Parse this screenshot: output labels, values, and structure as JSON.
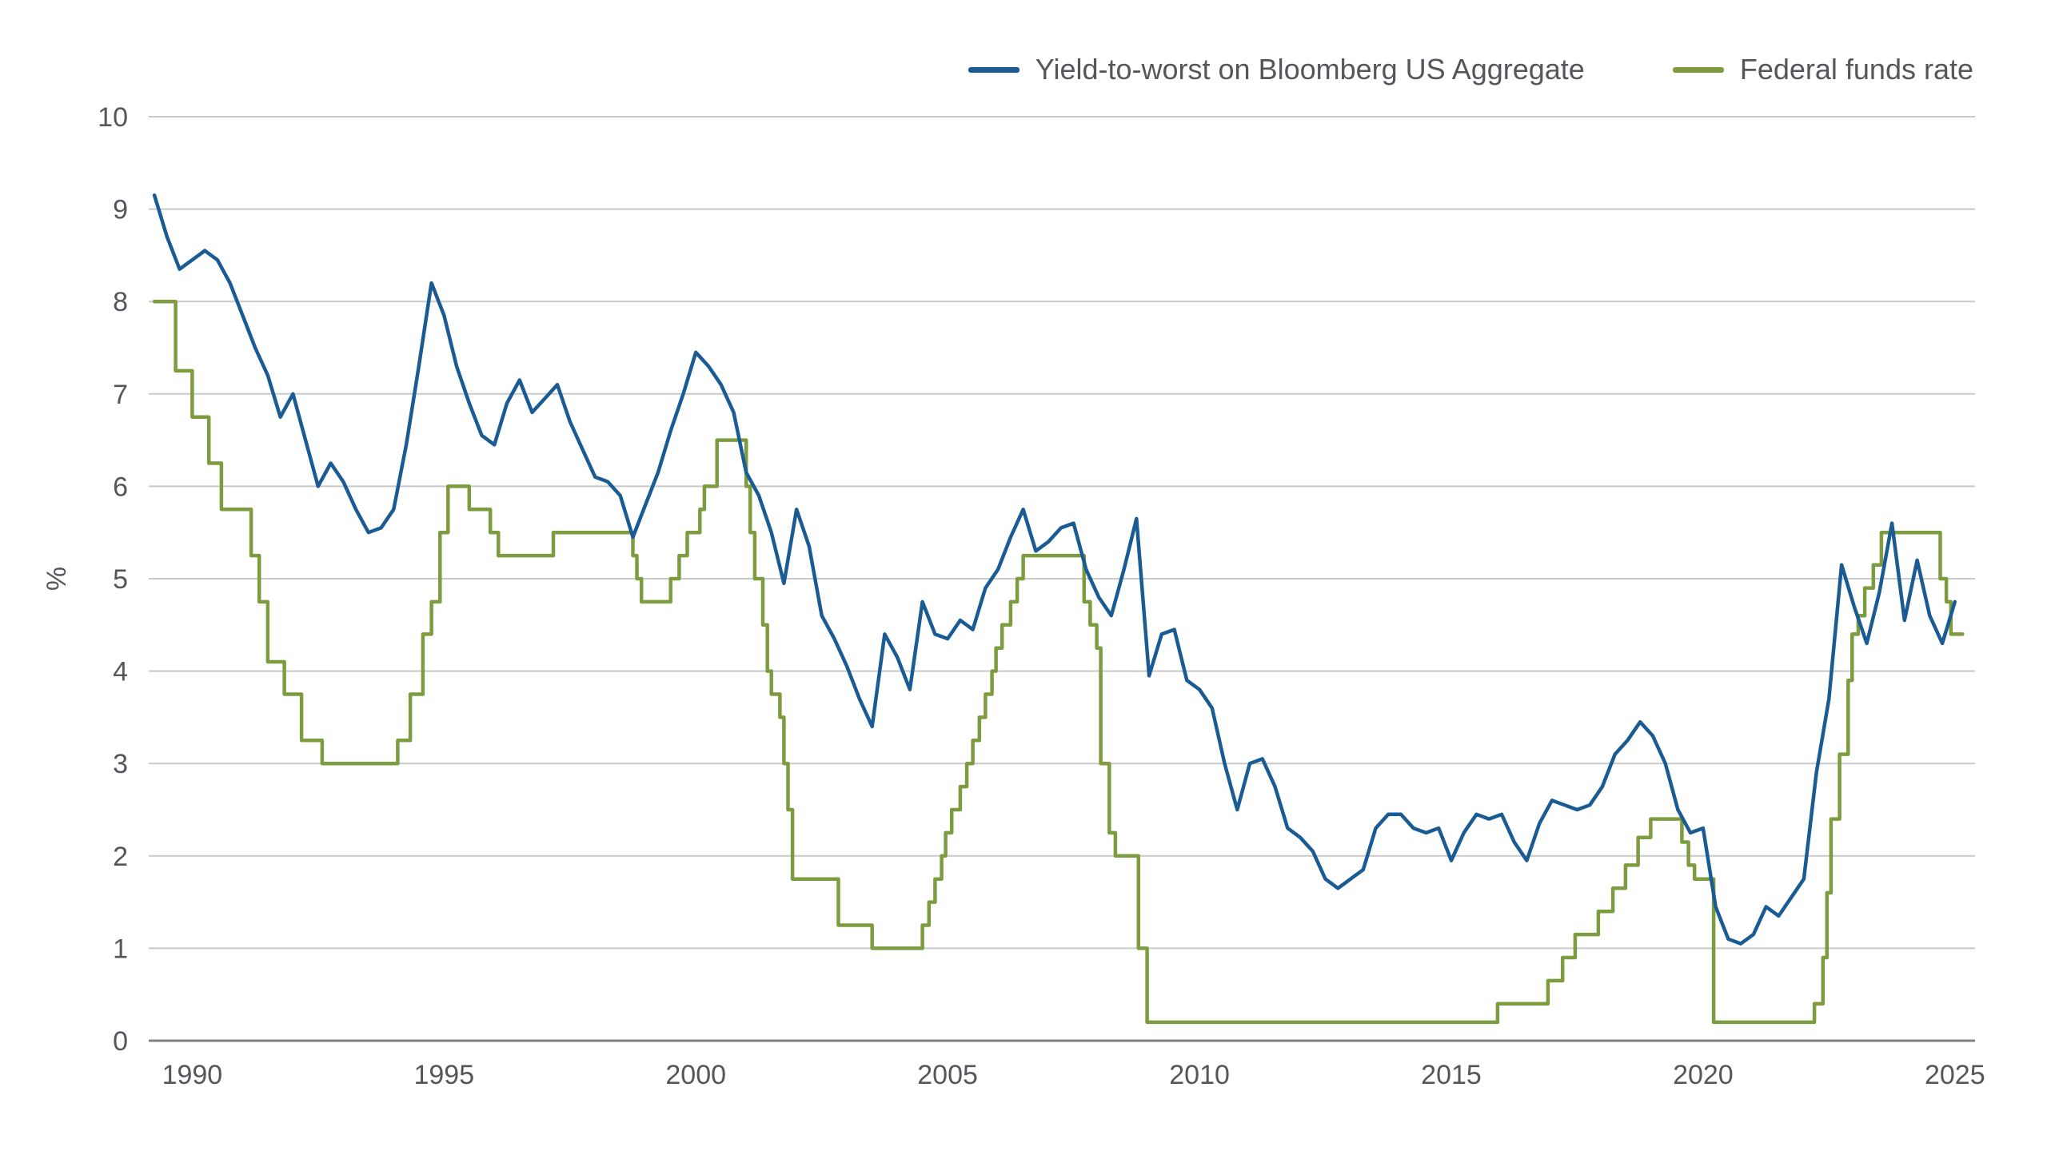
{
  "page": {
    "background_color": "#ffffff",
    "text_color": "#54565b"
  },
  "legend": {
    "position": "top-right"
  },
  "chart_data": {
    "type": "line",
    "title": "",
    "xlabel": "",
    "ylabel": "%",
    "ylim": [
      0,
      10
    ],
    "xlim": [
      1989.2,
      2025.4
    ],
    "yticks": [
      0,
      1,
      2,
      3,
      4,
      5,
      6,
      7,
      8,
      9,
      10
    ],
    "xticks": [
      1990,
      1995,
      2000,
      2005,
      2010,
      2015,
      2020,
      2025
    ],
    "grid": "horizontal",
    "legend_position": "top",
    "grid_color": "#c8c9cb",
    "axis_line_color": "#808285",
    "tick_label_color": "#54565b",
    "series": [
      {
        "id": "ytw-line",
        "name": "Yield-to-worst on Bloomberg US Aggregate",
        "color": "#1a5b94",
        "style": "line",
        "x_start": 1989.25,
        "dx": 0.25,
        "values": [
          9.15,
          8.7,
          8.35,
          8.45,
          8.55,
          8.45,
          8.2,
          7.85,
          7.5,
          7.2,
          6.75,
          7.0,
          6.5,
          6.0,
          6.25,
          6.05,
          5.75,
          5.5,
          5.55,
          5.75,
          6.45,
          7.3,
          8.2,
          7.85,
          7.3,
          6.9,
          6.55,
          6.45,
          6.9,
          7.15,
          6.8,
          6.95,
          7.1,
          6.7,
          6.4,
          6.1,
          6.05,
          5.9,
          5.45,
          5.8,
          6.15,
          6.6,
          7.0,
          7.45,
          7.3,
          7.1,
          6.8,
          6.15,
          5.9,
          5.5,
          4.95,
          5.75,
          5.35,
          4.6,
          4.35,
          4.05,
          3.7,
          3.4,
          4.4,
          4.15,
          3.8,
          4.75,
          4.4,
          4.35,
          4.55,
          4.45,
          4.9,
          5.1,
          5.45,
          5.75,
          5.3,
          5.4,
          5.55,
          5.6,
          5.1,
          4.8,
          4.6,
          5.1,
          5.65,
          3.95,
          4.4,
          4.45,
          3.9,
          3.8,
          3.6,
          3.0,
          2.5,
          3.0,
          3.05,
          2.75,
          2.3,
          2.2,
          2.05,
          1.75,
          1.65,
          1.75,
          1.85,
          2.3,
          2.45,
          2.45,
          2.3,
          2.25,
          2.3,
          1.95,
          2.25,
          2.45,
          2.4,
          2.45,
          2.15,
          1.95,
          2.35,
          2.6,
          2.55,
          2.5,
          2.55,
          2.75,
          3.1,
          3.25,
          3.45,
          3.3,
          3.0,
          2.5,
          2.25,
          2.3,
          1.45,
          1.1,
          1.05,
          1.15,
          1.45,
          1.35,
          1.55,
          1.75,
          2.9,
          3.7,
          5.15,
          4.7,
          4.3,
          4.85,
          5.6,
          4.55,
          5.2,
          4.6,
          4.3,
          4.75
        ]
      },
      {
        "id": "fed-funds-line",
        "name": "Federal funds rate",
        "color": "#7d9c3f",
        "style": "step",
        "x_end": 2025.15,
        "points": [
          [
            1989.25,
            8.0
          ],
          [
            1989.67,
            7.25
          ],
          [
            1990.0,
            6.75
          ],
          [
            1990.33,
            6.25
          ],
          [
            1990.58,
            5.75
          ],
          [
            1991.17,
            5.25
          ],
          [
            1991.33,
            4.75
          ],
          [
            1991.5,
            4.1
          ],
          [
            1991.83,
            3.75
          ],
          [
            1992.17,
            3.25
          ],
          [
            1992.58,
            3.0
          ],
          [
            1994.08,
            3.25
          ],
          [
            1994.33,
            3.75
          ],
          [
            1994.58,
            4.4
          ],
          [
            1994.75,
            4.75
          ],
          [
            1994.92,
            5.5
          ],
          [
            1995.08,
            6.0
          ],
          [
            1995.5,
            5.75
          ],
          [
            1995.92,
            5.5
          ],
          [
            1996.08,
            5.25
          ],
          [
            1997.17,
            5.5
          ],
          [
            1998.75,
            5.25
          ],
          [
            1998.83,
            5.0
          ],
          [
            1998.92,
            4.75
          ],
          [
            1999.5,
            5.0
          ],
          [
            1999.67,
            5.25
          ],
          [
            1999.83,
            5.5
          ],
          [
            2000.08,
            5.75
          ],
          [
            2000.17,
            6.0
          ],
          [
            2000.42,
            6.5
          ],
          [
            2001.0,
            6.0
          ],
          [
            2001.08,
            5.5
          ],
          [
            2001.17,
            5.0
          ],
          [
            2001.33,
            4.5
          ],
          [
            2001.42,
            4.0
          ],
          [
            2001.5,
            3.75
          ],
          [
            2001.67,
            3.5
          ],
          [
            2001.75,
            3.0
          ],
          [
            2001.83,
            2.5
          ],
          [
            2001.92,
            1.75
          ],
          [
            2002.83,
            1.25
          ],
          [
            2003.5,
            1.0
          ],
          [
            2004.5,
            1.25
          ],
          [
            2004.63,
            1.5
          ],
          [
            2004.75,
            1.75
          ],
          [
            2004.88,
            2.0
          ],
          [
            2004.96,
            2.25
          ],
          [
            2005.08,
            2.5
          ],
          [
            2005.25,
            2.75
          ],
          [
            2005.38,
            3.0
          ],
          [
            2005.5,
            3.25
          ],
          [
            2005.63,
            3.5
          ],
          [
            2005.75,
            3.75
          ],
          [
            2005.88,
            4.0
          ],
          [
            2005.96,
            4.25
          ],
          [
            2006.08,
            4.5
          ],
          [
            2006.25,
            4.75
          ],
          [
            2006.38,
            5.0
          ],
          [
            2006.5,
            5.25
          ],
          [
            2007.71,
            4.75
          ],
          [
            2007.83,
            4.5
          ],
          [
            2007.96,
            4.25
          ],
          [
            2008.04,
            3.0
          ],
          [
            2008.21,
            2.25
          ],
          [
            2008.33,
            2.0
          ],
          [
            2008.79,
            1.0
          ],
          [
            2008.96,
            0.2
          ],
          [
            2015.92,
            0.4
          ],
          [
            2016.92,
            0.65
          ],
          [
            2017.21,
            0.9
          ],
          [
            2017.46,
            1.15
          ],
          [
            2017.92,
            1.4
          ],
          [
            2018.21,
            1.65
          ],
          [
            2018.46,
            1.9
          ],
          [
            2018.71,
            2.2
          ],
          [
            2018.96,
            2.4
          ],
          [
            2019.58,
            2.15
          ],
          [
            2019.71,
            1.9
          ],
          [
            2019.83,
            1.75
          ],
          [
            2020.21,
            0.2
          ],
          [
            2022.21,
            0.4
          ],
          [
            2022.38,
            0.9
          ],
          [
            2022.46,
            1.6
          ],
          [
            2022.54,
            2.4
          ],
          [
            2022.71,
            3.1
          ],
          [
            2022.88,
            3.9
          ],
          [
            2022.96,
            4.4
          ],
          [
            2023.08,
            4.6
          ],
          [
            2023.21,
            4.9
          ],
          [
            2023.38,
            5.15
          ],
          [
            2023.54,
            5.5
          ],
          [
            2024.71,
            5.0
          ],
          [
            2024.83,
            4.75
          ],
          [
            2024.92,
            4.4
          ]
        ]
      }
    ]
  }
}
